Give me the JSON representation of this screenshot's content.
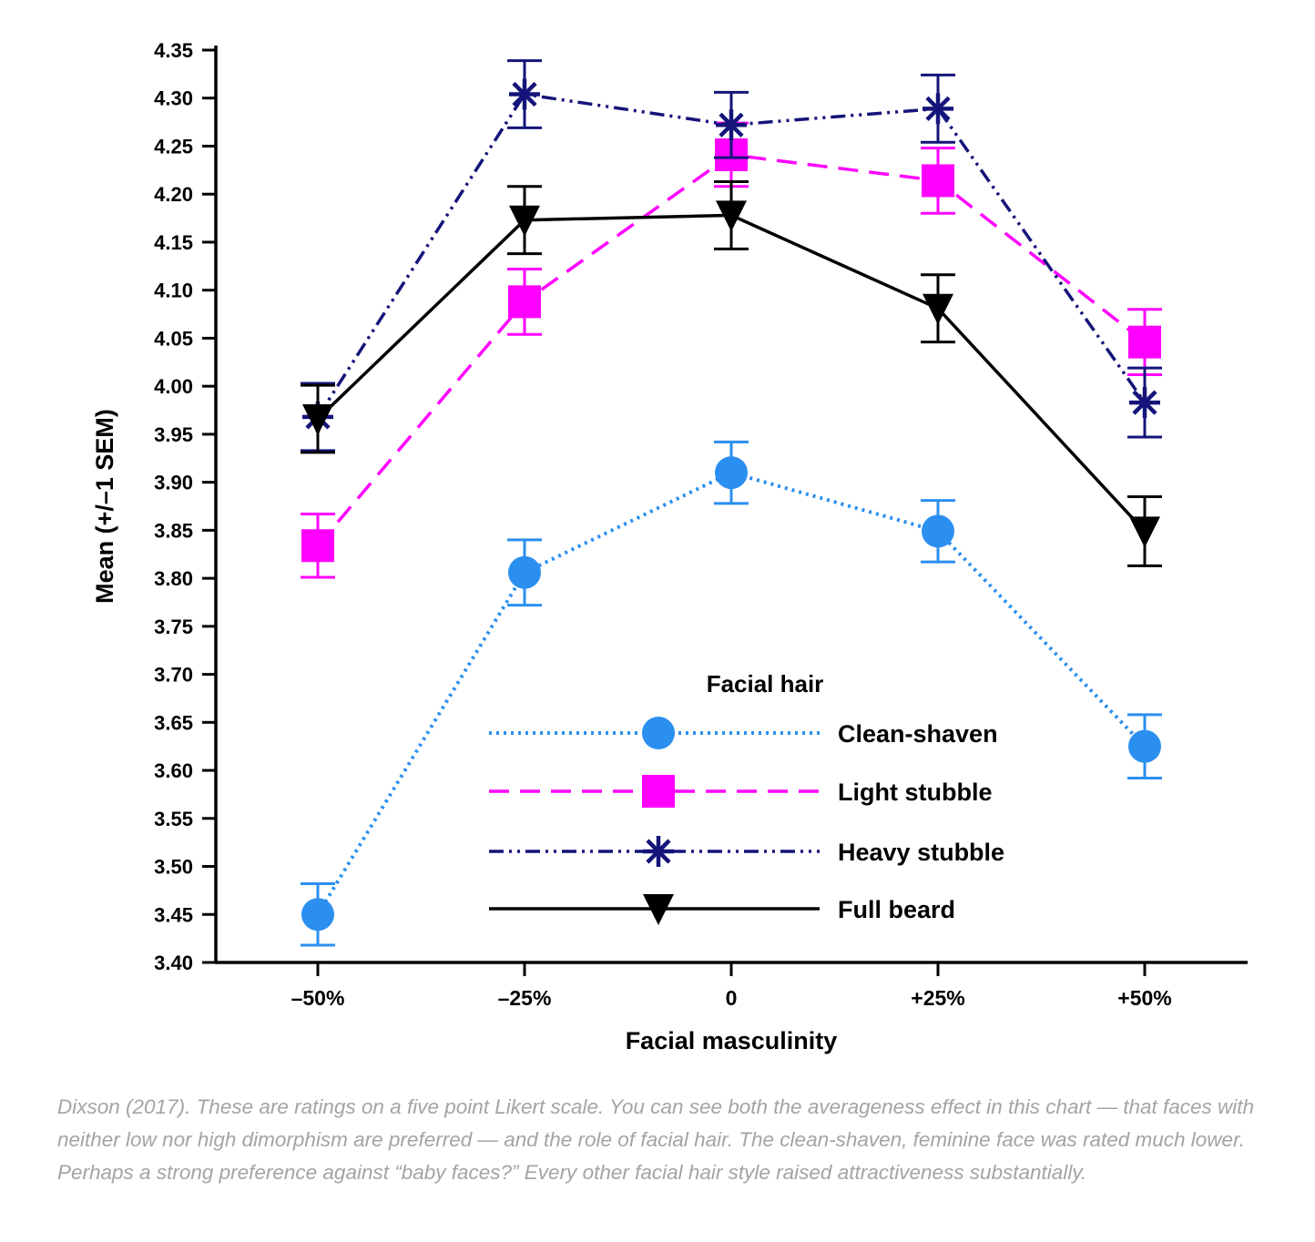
{
  "chart_data": {
    "type": "line",
    "title": "",
    "xlabel": "Facial masculinity",
    "ylabel": "Mean (+/–1 SEM)",
    "categories": [
      "–50%",
      "–25%",
      "0",
      "+25%",
      "+50%"
    ],
    "ylim": [
      3.4,
      4.35
    ],
    "yticks": [
      "3.40",
      "3.45",
      "3.50",
      "3.55",
      "3.60",
      "3.65",
      "3.70",
      "3.75",
      "3.80",
      "3.85",
      "3.90",
      "3.95",
      "4.00",
      "4.05",
      "4.10",
      "4.15",
      "4.20",
      "4.25",
      "4.30",
      "4.35"
    ],
    "grid": false,
    "legend": {
      "title": "Facial hair",
      "placement": "bottom-center"
    },
    "series": [
      {
        "name": "Clean-shaven",
        "color": "#2b8ff0",
        "marker": "circle",
        "line": "dotted",
        "values": [
          3.45,
          3.806,
          3.91,
          3.849,
          3.625
        ],
        "sem": [
          0.032,
          0.034,
          0.032,
          0.032,
          0.033
        ]
      },
      {
        "name": "Light stubble",
        "color": "#ff00ff",
        "marker": "square",
        "line": "dashed",
        "values": [
          3.834,
          4.088,
          4.241,
          4.214,
          4.046
        ],
        "sem": [
          0.033,
          0.034,
          0.033,
          0.034,
          0.034
        ]
      },
      {
        "name": "Heavy stubble",
        "color": "#14147a",
        "marker": "asterisk",
        "line": "dash-dot-dot",
        "values": [
          3.968,
          4.304,
          4.272,
          4.289,
          3.983
        ],
        "sem": [
          0.035,
          0.035,
          0.034,
          0.035,
          0.036
        ]
      },
      {
        "name": "Full beard",
        "color": "#000000",
        "marker": "triangle-down",
        "line": "solid",
        "values": [
          3.966,
          4.173,
          4.178,
          4.081,
          3.849
        ],
        "sem": [
          0.035,
          0.035,
          0.035,
          0.035,
          0.036
        ]
      }
    ]
  },
  "caption": "Dixson (2017). These are ratings on a five point Likert scale. You can see both the averageness effect in this chart — that faces with neither low nor high dimorphism are preferred — and the role of facial hair. The clean-shaven, feminine face was rated much lower. Perhaps a strong preference against “baby faces?” Every other facial hair style raised attractiveness substantially."
}
